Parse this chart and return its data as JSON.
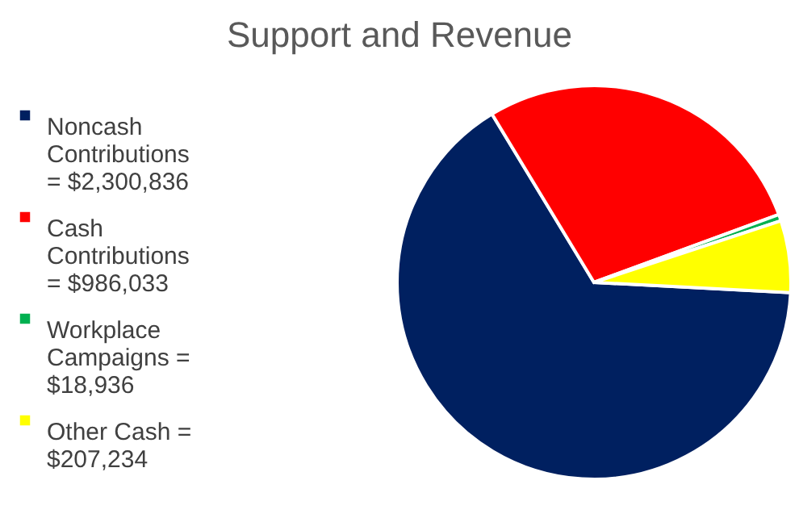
{
  "chart_data": {
    "type": "pie",
    "title": "Support and Revenue",
    "categories": [
      "Noncash Contributions = $2,300,836",
      "Cash Contributions = $986,033",
      "Workplace Campaigns = $18,936",
      "Other Cash = $207,234"
    ],
    "values": [
      2300836,
      986033,
      18936,
      207234
    ],
    "colors": [
      "#002060",
      "#ff0000",
      "#00b050",
      "#ffff00"
    ],
    "legend": "left"
  }
}
